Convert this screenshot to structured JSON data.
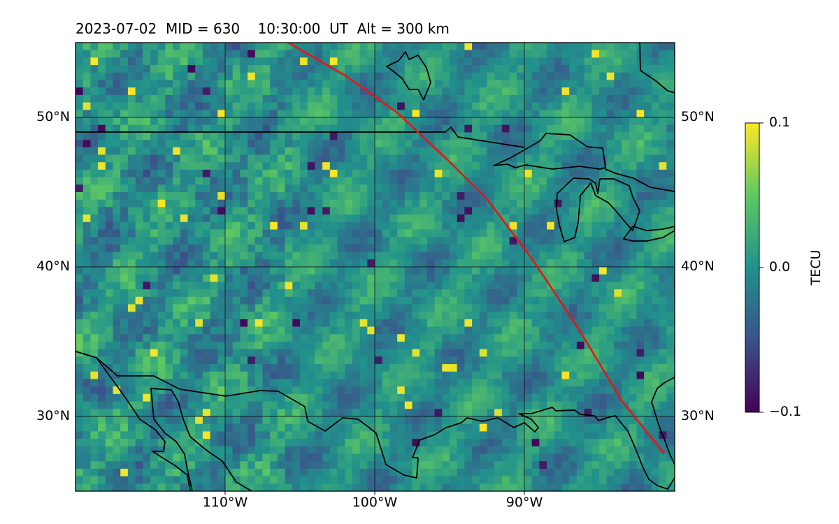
{
  "figure": {
    "title": "2023-07-02  MID = 630    10:30:00  UT  Alt = 300 km"
  },
  "map": {
    "projection": "plate-carree",
    "lon_range": [
      -120,
      -80
    ],
    "lat_range": [
      25,
      55
    ],
    "gridlines": true,
    "lon_ticks": [
      {
        "value": -110,
        "label": "110°W"
      },
      {
        "value": -100,
        "label": "100°W"
      },
      {
        "value": -90,
        "label": "90°W"
      }
    ],
    "lat_ticks": [
      {
        "value": 50,
        "label": "50°N"
      },
      {
        "value": 40,
        "label": "40°N"
      },
      {
        "value": 30,
        "label": "30°N"
      }
    ],
    "field": {
      "quantity": "differential TEC",
      "unit": "TECU",
      "vmin": -0.1,
      "vmax": 0.1,
      "colormap": "viridis",
      "colors": [
        "#440154",
        "#3b528b",
        "#21918c",
        "#5ec962",
        "#fde725"
      ]
    },
    "track": {
      "color": "#e8150e",
      "points": [
        {
          "lon": -105.8,
          "lat": 55.0
        },
        {
          "lon": -102.0,
          "lat": 52.8
        },
        {
          "lon": -98.5,
          "lat": 50.3
        },
        {
          "lon": -95.0,
          "lat": 47.0
        },
        {
          "lon": -92.5,
          "lat": 44.5
        },
        {
          "lon": -89.5,
          "lat": 40.5
        },
        {
          "lon": -86.5,
          "lat": 36.0
        },
        {
          "lon": -83.5,
          "lat": 31.0
        },
        {
          "lon": -80.7,
          "lat": 27.5
        }
      ]
    },
    "coastline_color": "#000000"
  },
  "colorbar": {
    "label": "TECU",
    "ticks": [
      {
        "value": 0.1,
        "label": "0.1"
      },
      {
        "value": 0.0,
        "label": "0.0"
      },
      {
        "value": -0.1,
        "label": "−0.1"
      }
    ]
  }
}
